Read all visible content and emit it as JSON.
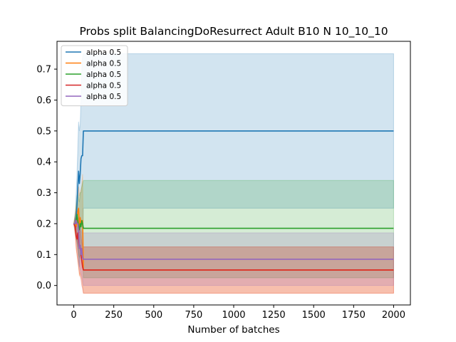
{
  "chart_data": {
    "type": "line",
    "title": "Probs split BalancingDoResurrect Adult B10 N 10_10_10",
    "xlabel": "Number of batches",
    "ylabel": "",
    "xlim": [
      -105,
      2105
    ],
    "ylim": [
      -0.063,
      0.79
    ],
    "xticks": [
      0,
      250,
      500,
      750,
      1000,
      1250,
      1500,
      1750,
      2000
    ],
    "xtick_labels": [
      "0",
      "250",
      "500",
      "750",
      "1000",
      "1250",
      "1500",
      "1750",
      "2000"
    ],
    "yticks": [
      0.0,
      0.1,
      0.2,
      0.3,
      0.4,
      0.5,
      0.6,
      0.7
    ],
    "ytick_labels": [
      "0.0",
      "0.1",
      "0.2",
      "0.3",
      "0.4",
      "0.5",
      "0.6",
      "0.7"
    ],
    "legend_position": "top-left",
    "series": [
      {
        "name": "alpha 0.5",
        "color": "#1f77b4",
        "x": [
          0,
          10,
          15,
          20,
          25,
          30,
          35,
          40,
          45,
          50,
          55,
          60,
          65,
          2000
        ],
        "y": [
          0.2,
          0.2,
          0.22,
          0.26,
          0.32,
          0.37,
          0.33,
          0.36,
          0.41,
          0.42,
          0.42,
          0.5,
          0.5,
          0.5
        ],
        "band_lower": [
          0.2,
          0.18,
          0.16,
          0.14,
          0.12,
          0.08,
          0.06,
          0.1,
          0.1,
          0.1,
          0.1,
          0.25,
          0.25,
          0.25
        ],
        "band_upper": [
          0.2,
          0.24,
          0.3,
          0.36,
          0.44,
          0.53,
          0.5,
          0.52,
          0.6,
          0.7,
          0.74,
          0.75,
          0.75,
          0.75
        ]
      },
      {
        "name": "alpha 0.5",
        "color": "#ff7f0e",
        "x": [
          0,
          10,
          15,
          20,
          25,
          30,
          35,
          40,
          45,
          50,
          55,
          60,
          2000
        ],
        "y": [
          0.2,
          0.2,
          0.19,
          0.21,
          0.24,
          0.25,
          0.19,
          0.22,
          0.2,
          0.2,
          0.21,
          0.05,
          0.05
        ],
        "band_lower": [
          0.2,
          0.16,
          0.12,
          0.1,
          0.08,
          0.06,
          0.03,
          0.04,
          0.03,
          0.02,
          0.0,
          -0.025,
          -0.025
        ],
        "band_upper": [
          0.2,
          0.24,
          0.26,
          0.28,
          0.3,
          0.32,
          0.29,
          0.3,
          0.31,
          0.32,
          0.36,
          0.125,
          0.125
        ]
      },
      {
        "name": "alpha 0.5",
        "color": "#2ca02c",
        "x": [
          0,
          10,
          15,
          20,
          25,
          30,
          35,
          40,
          45,
          50,
          55,
          60,
          2000
        ],
        "y": [
          0.2,
          0.2,
          0.21,
          0.23,
          0.21,
          0.19,
          0.18,
          0.2,
          0.19,
          0.21,
          0.2,
          0.185,
          0.185
        ],
        "band_lower": [
          0.2,
          0.17,
          0.15,
          0.14,
          0.12,
          0.1,
          0.09,
          0.1,
          0.1,
          0.1,
          0.1,
          0.025,
          0.025
        ],
        "band_upper": [
          0.2,
          0.23,
          0.26,
          0.29,
          0.3,
          0.28,
          0.27,
          0.3,
          0.3,
          0.32,
          0.33,
          0.34,
          0.34
        ]
      },
      {
        "name": "alpha 0.5",
        "color": "#d62728",
        "x": [
          0,
          10,
          15,
          20,
          25,
          30,
          35,
          40,
          45,
          50,
          55,
          60,
          2000
        ],
        "y": [
          0.2,
          0.19,
          0.16,
          0.15,
          0.17,
          0.14,
          0.12,
          0.13,
          0.1,
          0.08,
          0.06,
          0.05,
          0.05
        ],
        "band_lower": [
          0.2,
          0.16,
          0.12,
          0.1,
          0.08,
          0.06,
          0.04,
          0.03,
          0.02,
          0.0,
          -0.01,
          -0.025,
          -0.025
        ],
        "band_upper": [
          0.2,
          0.22,
          0.22,
          0.2,
          0.22,
          0.2,
          0.17,
          0.18,
          0.16,
          0.14,
          0.13,
          0.125,
          0.125
        ]
      },
      {
        "name": "alpha 0.5",
        "color": "#9467bd",
        "x": [
          0,
          10,
          15,
          20,
          25,
          30,
          35,
          40,
          45,
          50,
          55,
          60,
          2000
        ],
        "y": [
          0.2,
          0.2,
          0.21,
          0.2,
          0.2,
          0.18,
          0.12,
          0.13,
          0.1,
          0.12,
          0.09,
          0.085,
          0.085
        ],
        "band_lower": [
          0.2,
          0.18,
          0.16,
          0.14,
          0.12,
          0.1,
          0.06,
          0.05,
          0.04,
          0.03,
          0.02,
          0.0,
          0.0
        ],
        "band_upper": [
          0.2,
          0.22,
          0.24,
          0.24,
          0.22,
          0.22,
          0.2,
          0.19,
          0.18,
          0.17,
          0.17,
          0.17,
          0.17
        ]
      }
    ]
  }
}
